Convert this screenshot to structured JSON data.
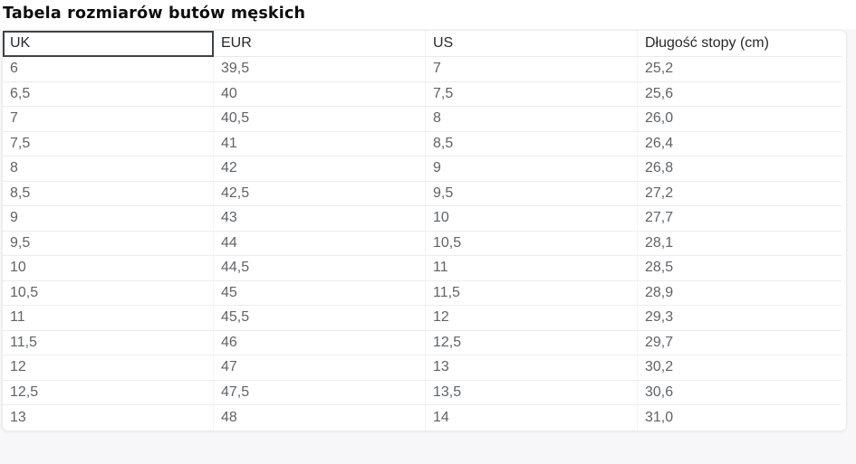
{
  "title": "Tabela rozmiarów butów męskich",
  "table": {
    "columns": [
      "UK",
      "EUR",
      "US",
      "Długość stopy (cm)"
    ],
    "column_keys": [
      "uk",
      "eur",
      "us",
      "cm"
    ],
    "selected_col_index": 0,
    "rows": [
      [
        "6",
        "39,5",
        "7",
        "25,2"
      ],
      [
        "6,5",
        "40",
        "7,5",
        "25,6"
      ],
      [
        "7",
        "40,5",
        "8",
        "26,0"
      ],
      [
        "7,5",
        "41",
        "8,5",
        "26,4"
      ],
      [
        "8",
        "42",
        "9",
        "26,8"
      ],
      [
        "8,5",
        "42,5",
        "9,5",
        "27,2"
      ],
      [
        "9",
        "43",
        "10",
        "27,7"
      ],
      [
        "9,5",
        "44",
        "10,5",
        "28,1"
      ],
      [
        "10",
        "44,5",
        "11",
        "28,5"
      ],
      [
        "10,5",
        "45",
        "11,5",
        "28,9"
      ],
      [
        "11",
        "45,5",
        "12",
        "29,3"
      ],
      [
        "11,5",
        "46",
        "12,5",
        "29,7"
      ],
      [
        "12",
        "47",
        "13",
        "30,2"
      ],
      [
        "12,5",
        "47,5",
        "13,5",
        "30,6"
      ],
      [
        "13",
        "48",
        "14",
        "31,0"
      ]
    ]
  },
  "colors": {
    "selection_outline": "#3f4347",
    "header_text": "#26282c",
    "cell_text": "#5f6368"
  }
}
